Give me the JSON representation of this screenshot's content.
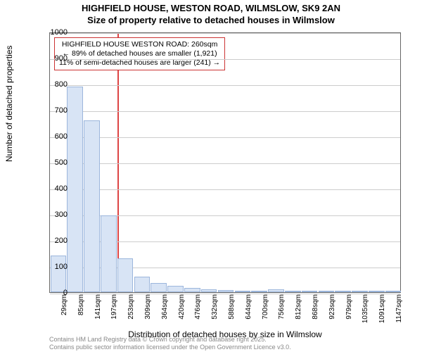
{
  "title": {
    "line1": "HIGHFIELD HOUSE, WESTON ROAD, WILMSLOW, SK9 2AN",
    "line2": "Size of property relative to detached houses in Wilmslow"
  },
  "chart": {
    "type": "histogram",
    "background_color": "#ffffff",
    "grid_color": "#cccccc",
    "axis_color": "#666666",
    "bar_fill": "#d8e4f5",
    "bar_border": "#9cb6dc",
    "marker_color": "#d44",
    "ylim": [
      0,
      1000
    ],
    "ytick_step": 100,
    "yticks": [
      0,
      100,
      200,
      300,
      400,
      500,
      600,
      700,
      800,
      900,
      1000
    ],
    "ylabel": "Number of detached properties",
    "xlabel": "Distribution of detached houses by size in Wilmslow",
    "x_categories": [
      "29sqm",
      "85sqm",
      "141sqm",
      "197sqm",
      "253sqm",
      "309sqm",
      "364sqm",
      "420sqm",
      "476sqm",
      "532sqm",
      "588sqm",
      "644sqm",
      "700sqm",
      "756sqm",
      "812sqm",
      "868sqm",
      "923sqm",
      "979sqm",
      "1035sqm",
      "1091sqm",
      "1147sqm"
    ],
    "values": [
      140,
      790,
      660,
      295,
      130,
      60,
      35,
      25,
      15,
      12,
      8,
      5,
      6,
      10,
      4,
      3,
      3,
      2,
      2,
      1,
      1
    ],
    "marker_index": 4,
    "label_fontsize": 12,
    "tick_fontsize": 11,
    "xtick_fontsize": 10
  },
  "annotation": {
    "line1": "HIGHFIELD HOUSE WESTON ROAD: 260sqm",
    "line2": "← 89% of detached houses are smaller (1,921)",
    "line3": "11% of semi-detached houses are larger (241) →",
    "border_color": "#c33",
    "background_color": "#ffffff"
  },
  "footer": {
    "line1": "Contains HM Land Registry data © Crown copyright and database right 2025.",
    "line2": "Contains public sector information licensed under the Open Government Licence v3.0."
  }
}
